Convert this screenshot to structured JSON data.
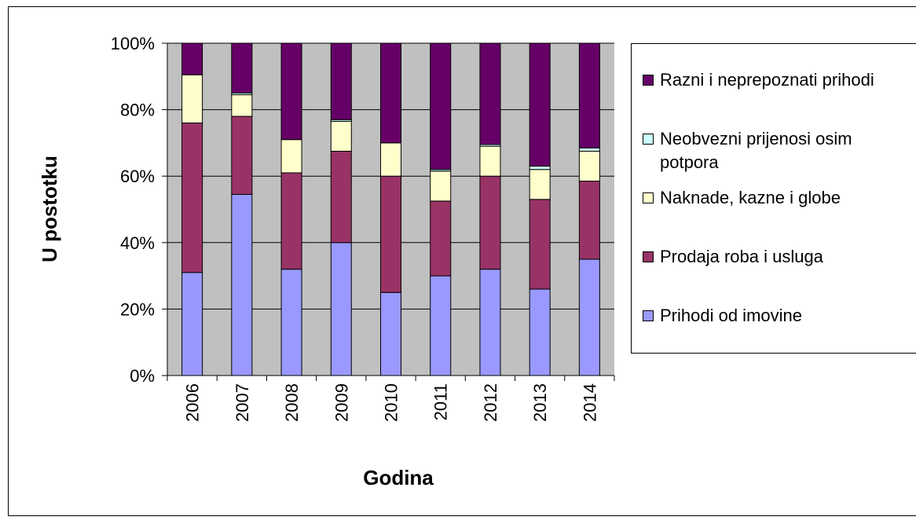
{
  "chart_data": {
    "type": "stacked_bar_100",
    "x_label": "Godina",
    "y_label": "U postotku",
    "categories": [
      "2006",
      "2007",
      "2008",
      "2009",
      "2010",
      "2011",
      "2012",
      "2013",
      "2014"
    ],
    "series": [
      {
        "name": "Prihodi od imovine",
        "color": "#9999ff",
        "values": [
          31,
          54.5,
          32,
          40,
          25,
          30,
          32,
          26,
          35
        ]
      },
      {
        "name": "Prodaja roba i usluga",
        "color": "#993366",
        "values": [
          45,
          23.5,
          29,
          27.5,
          35,
          22.5,
          28,
          27,
          23.5
        ]
      },
      {
        "name": "Naknade, kazne i globe",
        "color": "#ffffcc",
        "values": [
          14.5,
          6.5,
          10,
          9,
          10,
          9,
          9,
          9,
          9
        ]
      },
      {
        "name": "Neobvezni prijenosi osim potpora",
        "color": "#ccffff",
        "values": [
          0,
          0.5,
          0,
          0.5,
          0,
          0.5,
          0.5,
          1,
          1
        ]
      },
      {
        "name": "Razni i neprepoznati prihodi",
        "color": "#660066",
        "values": [
          9.5,
          15,
          29,
          23,
          30,
          38,
          30.5,
          37,
          31.5
        ]
      }
    ],
    "ylim": [
      0,
      100
    ],
    "yticks": [
      {
        "value": 0,
        "label": "0%"
      },
      {
        "value": 20,
        "label": "20%"
      },
      {
        "value": 40,
        "label": "40%"
      },
      {
        "value": 60,
        "label": "60%"
      },
      {
        "value": 80,
        "label": "80%"
      },
      {
        "value": 100,
        "label": "100%"
      }
    ],
    "grid": true,
    "plot_background": "#c0c0c0",
    "legend": "right"
  }
}
